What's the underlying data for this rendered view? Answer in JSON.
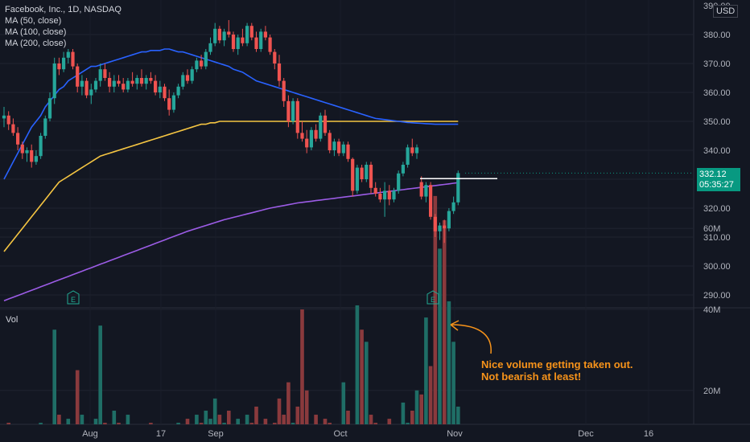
{
  "legend": {
    "symbol": "Facebook, Inc., 1D, NASDAQ",
    "ma50": "MA (50, close)",
    "ma100": "MA (100, close)",
    "ma200": "MA (200, close)"
  },
  "currency": "USD",
  "price_axis_top_partial": "390.00",
  "last_price": "332.12",
  "countdown": "05:35:27",
  "vol_label": "Vol",
  "annotation": [
    "Nice volume getting taken out.",
    "Not bearish at least!"
  ],
  "earnings_marker": "E",
  "colors": {
    "background": "#131722",
    "up": "#26a69a",
    "down": "#ef5350",
    "vol_up": "#1f6e66",
    "vol_down": "#8a3a3d",
    "ma50": "#2962ff",
    "ma100": "#f5c542",
    "ma200": "#9c5ce6",
    "annotation": "#f7931a"
  },
  "chart_data": {
    "type": "candlestick",
    "x_ticks": [
      "Aug",
      "17",
      "Sep",
      "Oct",
      "Nov",
      "Dec",
      "16"
    ],
    "y_ticks": [
      290,
      300,
      310,
      320,
      330,
      340,
      350,
      360,
      370,
      380
    ],
    "ylim": [
      285,
      392
    ],
    "volume_ticks": [
      "20M",
      "40M",
      "60M"
    ],
    "volume_ylim": [
      0,
      72
    ],
    "resistance_level": 330.2,
    "ohlc": [
      [
        351.0,
        355.0,
        348.0,
        352.0
      ],
      [
        352.0,
        353.5,
        347.0,
        349.0
      ],
      [
        349.0,
        351.0,
        345.0,
        346.0
      ],
      [
        346.0,
        348.0,
        340.0,
        342.0
      ],
      [
        342.0,
        343.0,
        337.0,
        339.0
      ],
      [
        339.0,
        341.0,
        336.0,
        340.0
      ],
      [
        340.0,
        342.0,
        334.0,
        336.0
      ],
      [
        336.0,
        340.0,
        335.0,
        338.0
      ],
      [
        338.0,
        346.0,
        337.0,
        345.0
      ],
      [
        345.0,
        352.0,
        344.0,
        351.0
      ],
      [
        351.0,
        360.0,
        350.0,
        358.0
      ],
      [
        358.0,
        372.0,
        356.0,
        370.0
      ],
      [
        370.0,
        372.0,
        366.0,
        368.0
      ],
      [
        368.0,
        374.0,
        367.0,
        372.0
      ],
      [
        372.0,
        375.0,
        370.0,
        374.0
      ],
      [
        374.0,
        375.0,
        368.0,
        369.0
      ],
      [
        369.0,
        370.0,
        360.0,
        362.0
      ],
      [
        362.0,
        366.0,
        359.0,
        364.0
      ],
      [
        364.0,
        365.0,
        358.0,
        359.0
      ],
      [
        359.0,
        363.0,
        356.0,
        361.0
      ],
      [
        361.0,
        365.0,
        360.0,
        364.0
      ],
      [
        364.0,
        370.0,
        362.0,
        368.0
      ],
      [
        368.0,
        370.0,
        364.0,
        365.0
      ],
      [
        365.0,
        367.0,
        360.0,
        362.0
      ],
      [
        362.0,
        366.0,
        360.0,
        364.0
      ],
      [
        364.0,
        366.0,
        362.0,
        363.0
      ],
      [
        363.0,
        365.0,
        360.0,
        361.0
      ],
      [
        361.0,
        365.0,
        360.0,
        364.0
      ],
      [
        364.0,
        367.0,
        362.0,
        363.0
      ],
      [
        363.0,
        366.0,
        361.0,
        365.0
      ],
      [
        365.0,
        368.0,
        362.0,
        363.0
      ],
      [
        363.0,
        366.0,
        361.0,
        365.0
      ],
      [
        365.0,
        367.0,
        363.0,
        364.0
      ],
      [
        364.0,
        366.0,
        359.0,
        360.0
      ],
      [
        360.0,
        364.0,
        358.0,
        362.0
      ],
      [
        362.0,
        363.0,
        357.0,
        358.0
      ],
      [
        358.0,
        361.0,
        352.0,
        354.0
      ],
      [
        354.0,
        360.0,
        353.0,
        359.0
      ],
      [
        359.0,
        363.0,
        358.0,
        362.0
      ],
      [
        362.0,
        367.0,
        361.0,
        366.0
      ],
      [
        366.0,
        368.0,
        363.0,
        364.0
      ],
      [
        364.0,
        369.0,
        363.0,
        368.0
      ],
      [
        368.0,
        372.0,
        367.0,
        371.0
      ],
      [
        371.0,
        373.0,
        368.0,
        369.0
      ],
      [
        369.0,
        375.0,
        368.0,
        374.0
      ],
      [
        374.0,
        379.0,
        373.0,
        377.0
      ],
      [
        377.0,
        384.0,
        376.0,
        382.0
      ],
      [
        382.0,
        383.0,
        377.0,
        378.0
      ],
      [
        378.0,
        382.0,
        376.0,
        381.0
      ],
      [
        381.0,
        385.0,
        379.0,
        380.0
      ],
      [
        380.0,
        381.0,
        374.0,
        375.0
      ],
      [
        375.0,
        380.0,
        373.0,
        379.0
      ],
      [
        379.0,
        382.0,
        376.0,
        377.0
      ],
      [
        377.0,
        384.0,
        376.0,
        383.0
      ],
      [
        383.0,
        384.0,
        378.0,
        379.0
      ],
      [
        379.0,
        381.0,
        374.0,
        375.0
      ],
      [
        375.0,
        382.0,
        374.0,
        381.0
      ],
      [
        381.0,
        383.0,
        378.0,
        379.0
      ],
      [
        379.0,
        380.0,
        373.0,
        374.0
      ],
      [
        374.0,
        375.0,
        368.0,
        370.0
      ],
      [
        370.0,
        373.0,
        362.0,
        364.0
      ],
      [
        364.0,
        365.0,
        355.0,
        357.0
      ],
      [
        357.0,
        359.0,
        348.0,
        350.0
      ],
      [
        350.0,
        358.0,
        349.0,
        357.0
      ],
      [
        357.0,
        358.0,
        344.0,
        346.0
      ],
      [
        346.0,
        350.0,
        343.0,
        344.0
      ],
      [
        344.0,
        347.0,
        339.0,
        341.0
      ],
      [
        341.0,
        348.0,
        340.0,
        347.0
      ],
      [
        347.0,
        349.0,
        343.0,
        344.0
      ],
      [
        344.0,
        353.0,
        343.0,
        352.0
      ],
      [
        352.0,
        354.0,
        345.0,
        346.0
      ],
      [
        346.0,
        347.0,
        339.0,
        340.0
      ],
      [
        340.0,
        344.0,
        338.0,
        343.0
      ],
      [
        343.0,
        344.0,
        338.0,
        339.0
      ],
      [
        339.0,
        343.0,
        338.0,
        342.0
      ],
      [
        342.0,
        343.0,
        336.0,
        337.0
      ],
      [
        337.0,
        337.5,
        324.0,
        326.0
      ],
      [
        326.0,
        335.0,
        325.0,
        334.0
      ],
      [
        334.0,
        335.0,
        329.0,
        330.0
      ],
      [
        330.0,
        336.0,
        329.0,
        335.0
      ],
      [
        335.0,
        336.0,
        325.0,
        327.0
      ],
      [
        327.0,
        329.0,
        324.0,
        325.0
      ],
      [
        325.0,
        327.0,
        322.0,
        323.0
      ],
      [
        323.0,
        329.0,
        317.0,
        326.0
      ],
      [
        326.0,
        328.0,
        321.0,
        323.0
      ],
      [
        323.0,
        327.0,
        322.0,
        326.0
      ],
      [
        326.0,
        333.0,
        325.0,
        332.0
      ],
      [
        332.0,
        336.0,
        331.0,
        335.0
      ],
      [
        335.0,
        342.0,
        334.0,
        341.0
      ],
      [
        341.0,
        344.0,
        338.0,
        339.0
      ],
      [
        339.0,
        342.0,
        337.0,
        341.0
      ],
      [
        329.0,
        331.0,
        323.0,
        324.0
      ],
      [
        324.0,
        329.0,
        322.0,
        328.0
      ],
      [
        328.0,
        329.0,
        316.0,
        317.0
      ],
      [
        317.0,
        318.0,
        310.0,
        312.0
      ],
      [
        312.0,
        315.0,
        309.0,
        314.0
      ],
      [
        314.0,
        316.0,
        308.0,
        313.0
      ],
      [
        313.0,
        320.0,
        312.0,
        319.0
      ],
      [
        319.0,
        324.0,
        318.0,
        322.0
      ],
      [
        322.0,
        333.0,
        321.0,
        332.12
      ]
    ],
    "volume_m": [
      10,
      12,
      8,
      11,
      9,
      9,
      10,
      8,
      12,
      10,
      11,
      35,
      14,
      10,
      13,
      8,
      25,
      14,
      11,
      9,
      13,
      36,
      12,
      10,
      15,
      12,
      9,
      14,
      10,
      8,
      11,
      9,
      12,
      10,
      9,
      8,
      11,
      9,
      12,
      10,
      13,
      9,
      14,
      12,
      15,
      13,
      18,
      14,
      12,
      15,
      11,
      13,
      10,
      14,
      12,
      16,
      11,
      13,
      10,
      12,
      18,
      14,
      22,
      12,
      16,
      40,
      20,
      11,
      14,
      10,
      13,
      12,
      9,
      11,
      22,
      15,
      10,
      41,
      35,
      32,
      14,
      12,
      9,
      8,
      13,
      10,
      9,
      17,
      12,
      15,
      20,
      19,
      38,
      26,
      68,
      55,
      62,
      42,
      32,
      16
    ],
    "ma50": [
      330,
      333,
      336,
      339,
      342,
      345,
      348,
      350,
      352,
      355,
      357,
      359,
      361,
      362,
      364,
      365,
      366,
      367,
      368,
      369,
      369,
      369.5,
      370,
      370.5,
      371,
      371.5,
      372,
      372.5,
      373,
      373.5,
      374,
      374,
      374.5,
      374.5,
      374.5,
      375,
      375,
      374.5,
      374,
      374,
      373.5,
      373,
      372.5,
      372,
      371.5,
      371,
      370.5,
      370,
      369.5,
      369,
      368,
      367.5,
      367,
      366,
      365,
      364,
      363.5,
      363,
      362.5,
      362,
      361.5,
      361,
      360.5,
      360,
      359.5,
      359,
      358.5,
      358,
      357.5,
      357,
      356.5,
      356,
      355.5,
      355,
      354.5,
      354,
      353.5,
      353,
      352.5,
      352,
      351.5,
      351,
      350.8,
      350.6,
      350.4,
      350.2,
      350,
      349.8,
      349.6,
      349.5,
      349.4,
      349.3,
      349.2,
      349.1,
      349,
      349,
      349,
      349,
      349,
      349
    ],
    "ma100": [
      305,
      307,
      309,
      311,
      313,
      315,
      317,
      319,
      321,
      323,
      325,
      327,
      329,
      330,
      331,
      332,
      333,
      334,
      335,
      336,
      337,
      338,
      338.5,
      339,
      339.5,
      340,
      340.5,
      341,
      341.5,
      342,
      342.5,
      343,
      343.5,
      344,
      344.5,
      345,
      345.5,
      346,
      346.5,
      347,
      347.5,
      348,
      348.5,
      349,
      349,
      349.5,
      349.5,
      350,
      350,
      350,
      350,
      350,
      350,
      350,
      350,
      350,
      350,
      350,
      350,
      350,
      350,
      350,
      350,
      350,
      350,
      350,
      350,
      350,
      350,
      350,
      350,
      350,
      350,
      350,
      350,
      350,
      350,
      350,
      350,
      350,
      350,
      350,
      350,
      350,
      350,
      350,
      350,
      350,
      350,
      350,
      350,
      350,
      350,
      350,
      350,
      350,
      350,
      350,
      350,
      350
    ],
    "ma200": [
      288,
      288.6,
      289.2,
      289.8,
      290.4,
      291,
      291.6,
      292.2,
      292.8,
      293.4,
      294,
      294.6,
      295.2,
      295.8,
      296.4,
      297,
      297.6,
      298.2,
      298.8,
      299.4,
      300,
      300.6,
      301.2,
      301.8,
      302.4,
      303,
      303.6,
      304.2,
      304.8,
      305.4,
      306,
      306.6,
      307.2,
      307.8,
      308.4,
      309,
      309.6,
      310.2,
      310.8,
      311.4,
      312,
      312.5,
      313,
      313.5,
      314,
      314.5,
      315,
      315.5,
      316,
      316.4,
      316.8,
      317.2,
      317.6,
      318,
      318.4,
      318.8,
      319.2,
      319.6,
      320,
      320.3,
      320.6,
      320.9,
      321.2,
      321.5,
      321.8,
      322,
      322.2,
      322.4,
      322.6,
      322.8,
      323,
      323.2,
      323.4,
      323.6,
      323.8,
      324,
      324.2,
      324.4,
      324.6,
      324.8,
      325,
      325.2,
      325.4,
      325.6,
      325.8,
      326,
      326.2,
      326.4,
      326.6,
      326.8,
      327,
      327.2,
      327.4,
      327.6,
      327.8,
      328,
      328.2,
      328.4,
      328.6,
      328.8
    ]
  }
}
